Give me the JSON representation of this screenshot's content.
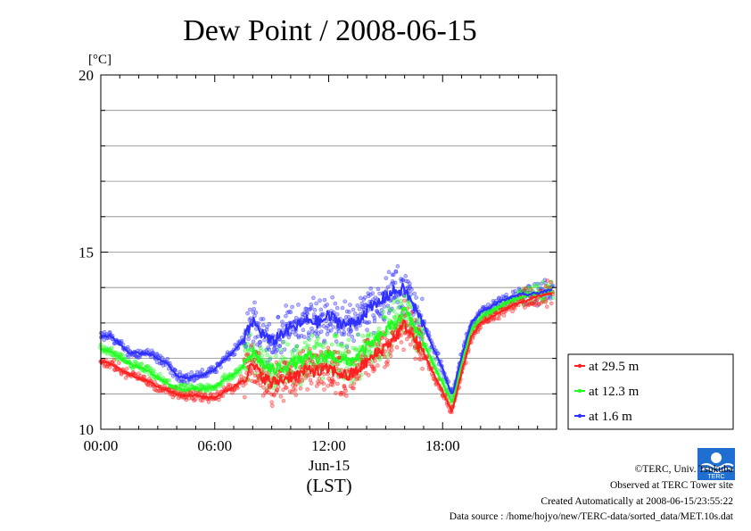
{
  "chart_data": {
    "type": "line",
    "title": "Dew Point / 2008-06-15",
    "ylabel": "[°C]",
    "xlabel": "Jun-15",
    "xlabel_note": "(LST)",
    "ylim": [
      10,
      20
    ],
    "xlim": [
      0,
      24
    ],
    "y_ticks": [
      10,
      15,
      20
    ],
    "y_minor_ticks": [
      11,
      12,
      13,
      14,
      16,
      17,
      18,
      19
    ],
    "x_ticks": [
      {
        "x": 0,
        "label": "00:00"
      },
      {
        "x": 6,
        "label": "06:00"
      },
      {
        "x": 12,
        "label": "12:00"
      },
      {
        "x": 18,
        "label": "18:00"
      }
    ],
    "grid": true,
    "legend_position": "right",
    "series": [
      {
        "name": "at 29.5 m",
        "color": "#ff2020",
        "x": [
          0,
          0.5,
          1,
          1.5,
          2,
          2.5,
          3,
          3.5,
          4,
          4.5,
          5,
          5.5,
          6,
          6.5,
          7,
          7.5,
          8,
          8.5,
          9,
          9.5,
          10,
          10.5,
          11,
          11.5,
          12,
          12.5,
          13,
          13.5,
          14,
          14.5,
          15,
          15.5,
          16,
          16.5,
          17,
          17.5,
          18,
          18.5,
          19,
          19.5,
          20,
          20.5,
          21,
          21.5,
          22,
          22.5,
          23,
          23.5,
          24
        ],
        "y": [
          11.9,
          11.85,
          11.7,
          11.55,
          11.45,
          11.35,
          11.2,
          11.1,
          11.0,
          10.95,
          10.95,
          10.9,
          10.9,
          11.05,
          11.2,
          11.4,
          11.8,
          11.5,
          11.3,
          11.4,
          11.5,
          11.55,
          11.7,
          11.6,
          11.7,
          11.6,
          11.5,
          11.65,
          11.9,
          12.1,
          12.35,
          12.6,
          12.95,
          12.55,
          12.15,
          11.6,
          11.05,
          10.5,
          11.6,
          12.6,
          13.0,
          13.15,
          13.3,
          13.45,
          13.55,
          13.65,
          13.75,
          13.8,
          13.85
        ]
      },
      {
        "name": "at 12.3 m",
        "color": "#20ff20",
        "x": [
          0,
          0.5,
          1,
          1.5,
          2,
          2.5,
          3,
          3.5,
          4,
          4.5,
          5,
          5.5,
          6,
          6.5,
          7,
          7.5,
          8,
          8.5,
          9,
          9.5,
          10,
          10.5,
          11,
          11.5,
          12,
          12.5,
          13,
          13.5,
          14,
          14.5,
          15,
          15.5,
          16,
          16.5,
          17,
          17.5,
          18,
          18.5,
          19,
          19.5,
          20,
          20.5,
          21,
          21.5,
          22,
          22.5,
          23,
          23.5,
          24
        ],
        "y": [
          12.25,
          12.2,
          12.0,
          11.85,
          11.75,
          11.65,
          11.45,
          11.3,
          11.15,
          11.1,
          11.15,
          11.15,
          11.2,
          11.4,
          11.55,
          11.75,
          12.2,
          11.85,
          11.65,
          11.75,
          11.85,
          11.9,
          12.05,
          11.95,
          12.1,
          12.0,
          11.9,
          12.05,
          12.3,
          12.5,
          12.75,
          13.0,
          13.35,
          12.9,
          12.45,
          11.85,
          11.3,
          10.75,
          11.85,
          12.8,
          13.15,
          13.3,
          13.45,
          13.6,
          13.7,
          13.8,
          13.85,
          13.9,
          13.95
        ]
      },
      {
        "name": "at 1.6 m",
        "color": "#3030ff",
        "x": [
          0,
          0.5,
          1,
          1.5,
          2,
          2.5,
          3,
          3.5,
          4,
          4.5,
          5,
          5.5,
          6,
          6.5,
          7,
          7.5,
          8,
          8.5,
          9,
          9.5,
          10,
          10.5,
          11,
          11.5,
          12,
          12.5,
          13,
          13.5,
          14,
          14.5,
          15,
          15.5,
          16,
          16.5,
          17,
          17.5,
          18,
          18.5,
          19,
          19.5,
          20,
          20.5,
          21,
          21.5,
          22,
          22.5,
          23,
          23.5,
          24
        ],
        "y": [
          12.6,
          12.65,
          12.4,
          12.15,
          12.15,
          12.15,
          12.0,
          11.85,
          11.5,
          11.45,
          11.5,
          11.55,
          11.7,
          11.95,
          12.2,
          12.5,
          13.05,
          12.7,
          12.45,
          12.7,
          12.85,
          12.95,
          13.1,
          13.0,
          13.2,
          13.05,
          12.95,
          13.05,
          13.35,
          13.5,
          13.75,
          13.9,
          13.95,
          13.45,
          12.95,
          12.3,
          11.7,
          10.95,
          12.05,
          13.0,
          13.3,
          13.45,
          13.6,
          13.7,
          13.8,
          13.8,
          13.85,
          13.9,
          13.95
        ]
      }
    ]
  },
  "credits": {
    "copyright": "©TERC, Univ. Tsukuba",
    "site": "Observed at TERC Tower site",
    "created": "Created Automatically at 2008-06-15/23:55:22",
    "source": "Data source : /home/hojyo/new/TERC-data/sorted_data/MET.10s.dat",
    "logo_text": "TERC"
  }
}
